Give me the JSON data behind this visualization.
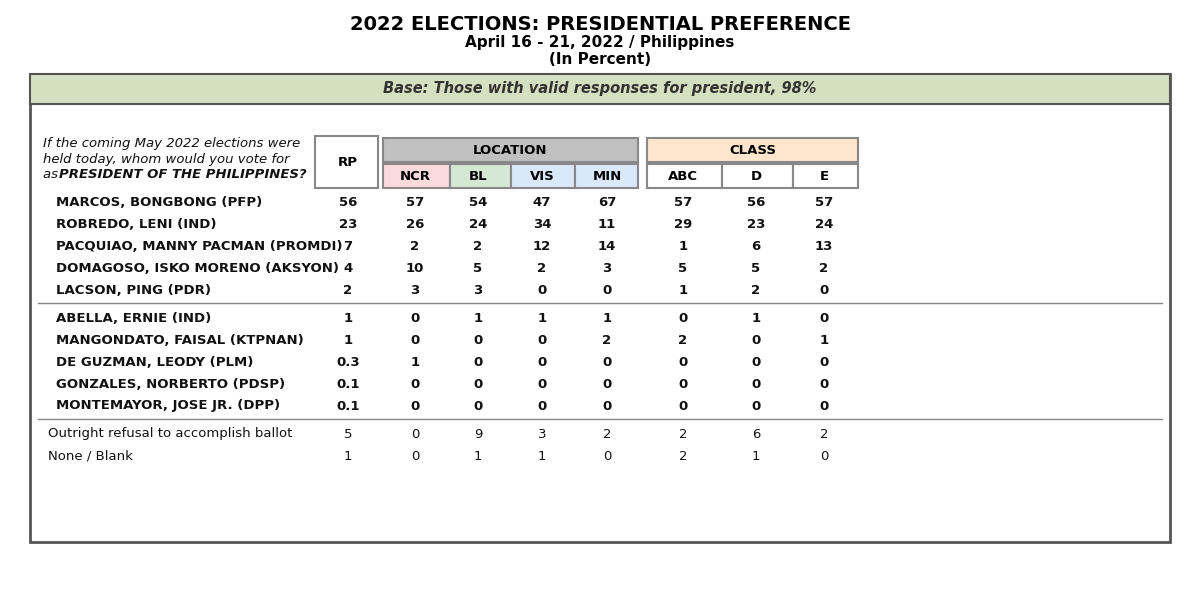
{
  "title": "2022 ELECTIONS: PRESIDENTIAL PREFERENCE",
  "subtitle1": "April 16 - 21, 2022 / Philippines",
  "subtitle2": "(In Percent)",
  "base_text": "Base: Those with valid responses for president, 98%",
  "ncr_color": "#FADADD",
  "bl_color": "#D5E8D4",
  "vis_color": "#DAE8FC",
  "min_color": "#DAE8FC",
  "location_header_color": "#C0C0C0",
  "class_header_color": "#FFE6CC",
  "base_row_color": "#D5E0C0",
  "rows_group1": [
    {
      "name": "MARCOS, BONGBONG (PFP)",
      "rp": "56",
      "ncr": "57",
      "bl": "54",
      "vis": "47",
      "min": "67",
      "abc": "57",
      "d": "56",
      "e": "57"
    },
    {
      "name": "ROBREDO, LENI (IND)",
      "rp": "23",
      "ncr": "26",
      "bl": "24",
      "vis": "34",
      "min": "11",
      "abc": "29",
      "d": "23",
      "e": "24"
    },
    {
      "name": "PACQUIAO, MANNY PACMAN (PROMDI)",
      "rp": "7",
      "ncr": "2",
      "bl": "2",
      "vis": "12",
      "min": "14",
      "abc": "1",
      "d": "6",
      "e": "13"
    },
    {
      "name": "DOMAGOSO, ISKO MORENO (AKSYON)",
      "rp": "4",
      "ncr": "10",
      "bl": "5",
      "vis": "2",
      "min": "3",
      "abc": "5",
      "d": "5",
      "e": "2"
    },
    {
      "name": "LACSON, PING (PDR)",
      "rp": "2",
      "ncr": "3",
      "bl": "3",
      "vis": "0",
      "min": "0",
      "abc": "1",
      "d": "2",
      "e": "0"
    }
  ],
  "rows_group2": [
    {
      "name": "ABELLA, ERNIE (IND)",
      "rp": "1",
      "ncr": "0",
      "bl": "1",
      "vis": "1",
      "min": "1",
      "abc": "0",
      "d": "1",
      "e": "0"
    },
    {
      "name": "MANGONDATO, FAISAL (KTPNAN)",
      "rp": "1",
      "ncr": "0",
      "bl": "0",
      "vis": "0",
      "min": "2",
      "abc": "2",
      "d": "0",
      "e": "1"
    },
    {
      "name": "DE GUZMAN, LEODY (PLM)",
      "rp": "0.3",
      "ncr": "1",
      "bl": "0",
      "vis": "0",
      "min": "0",
      "abc": "0",
      "d": "0",
      "e": "0"
    },
    {
      "name": "GONZALES, NORBERTO (PDSP)",
      "rp": "0.1",
      "ncr": "0",
      "bl": "0",
      "vis": "0",
      "min": "0",
      "abc": "0",
      "d": "0",
      "e": "0"
    },
    {
      "name": "MONTEMAYOR, JOSE JR. (DPP)",
      "rp": "0.1",
      "ncr": "0",
      "bl": "0",
      "vis": "0",
      "min": "0",
      "abc": "0",
      "d": "0",
      "e": "0"
    }
  ],
  "rows_footer": [
    {
      "name": "Outright refusal to accomplish ballot",
      "rp": "5",
      "ncr": "0",
      "bl": "9",
      "vis": "3",
      "min": "2",
      "abc": "2",
      "d": "6",
      "e": "2"
    },
    {
      "name": "None / Blank",
      "rp": "1",
      "ncr": "0",
      "bl": "1",
      "vis": "1",
      "min": "0",
      "abc": "2",
      "d": "1",
      "e": "0"
    }
  ],
  "bg_color": "#FFFFFF",
  "outer_border_color": "#555555",
  "title_color": "#000000",
  "body_font_size": 9.5,
  "header_font_size": 9.5,
  "title_font_size": 14
}
